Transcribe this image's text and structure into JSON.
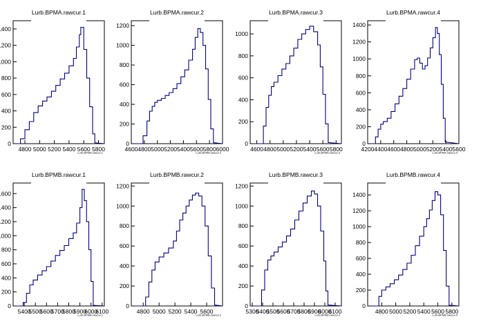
{
  "chart_data": [
    {
      "type": "histogram",
      "title": "Lurb.BPMA.rawcur.1",
      "xlabel": "Lurb.BPMA.rawcur.1",
      "xlim": [
        4640,
        5880
      ],
      "ylim": [
        0,
        1500
      ],
      "xticks": [
        4800,
        5000,
        5200,
        5400,
        5600,
        5800
      ],
      "yticks": [
        0,
        200,
        400,
        600,
        800,
        1000,
        1200,
        1400
      ],
      "bins": {
        "x": [
          4680,
          4740,
          4800,
          4860,
          4920,
          4980,
          5040,
          5100,
          5160,
          5220,
          5280,
          5340,
          5400,
          5460,
          5500,
          5540,
          5560,
          5600,
          5640,
          5680,
          5720,
          5750
        ],
        "y": [
          0,
          60,
          170,
          270,
          380,
          460,
          520,
          570,
          640,
          710,
          790,
          860,
          950,
          1040,
          1180,
          1330,
          1420,
          1150,
          800,
          450,
          120,
          10
        ]
      }
    },
    {
      "type": "histogram",
      "title": "Lurb.BPMA.rawcur.2",
      "xlabel": "Lurb.BPMA.rawcur.2",
      "xlim": [
        4600,
        6000
      ],
      "ylim": [
        0,
        1250
      ],
      "xticks": [
        4600,
        4800,
        5000,
        5200,
        5400,
        5600,
        5800,
        6000
      ],
      "yticks": [
        0,
        200,
        400,
        600,
        800,
        1000,
        1200
      ],
      "bins": {
        "x": [
          4720,
          4780,
          4840,
          4880,
          4920,
          4960,
          5000,
          5060,
          5120,
          5180,
          5240,
          5300,
          5360,
          5420,
          5480,
          5540,
          5580,
          5620,
          5660,
          5700,
          5740,
          5780,
          5820,
          5860
        ],
        "y": [
          0,
          80,
          230,
          330,
          380,
          420,
          440,
          460,
          490,
          520,
          560,
          610,
          680,
          750,
          850,
          960,
          1080,
          1170,
          1130,
          1000,
          760,
          450,
          150,
          10
        ]
      }
    },
    {
      "type": "histogram",
      "title": "Lurb.BPMA.rawcur.3",
      "xlabel": "Lurb.BPMA.rawcur.3",
      "xlim": [
        4500,
        5880
      ],
      "ylim": [
        0,
        1120
      ],
      "xticks": [
        4600,
        4800,
        5000,
        5200,
        5400,
        5600,
        5800
      ],
      "yticks": [
        0,
        200,
        400,
        600,
        800,
        1000
      ],
      "bins": {
        "x": [
          4660,
          4700,
          4740,
          4780,
          4820,
          4860,
          4920,
          4980,
          5040,
          5100,
          5160,
          5220,
          5280,
          5340,
          5400,
          5460,
          5520,
          5560,
          5600,
          5640,
          5680
        ],
        "y": [
          0,
          160,
          330,
          440,
          520,
          560,
          620,
          680,
          730,
          800,
          870,
          950,
          1000,
          1040,
          1070,
          1020,
          900,
          700,
          450,
          180,
          10
        ]
      }
    },
    {
      "type": "histogram",
      "title": "Lurb.BPMA.rawcur.4",
      "xlabel": "Lurb.BPMA.rawcur.4",
      "xlim": [
        4200,
        5600
      ],
      "ylim": [
        0,
        1450
      ],
      "xticks": [
        4200,
        4400,
        4600,
        4800,
        5000,
        5200,
        5400,
        5600
      ],
      "yticks": [
        0,
        200,
        400,
        600,
        800,
        1000,
        1200,
        1400
      ],
      "bins": {
        "x": [
          4280,
          4320,
          4360,
          4400,
          4440,
          4500,
          4560,
          4620,
          4680,
          4740,
          4800,
          4860,
          4920,
          4960,
          5000,
          5040,
          5080,
          5120,
          5160,
          5200,
          5240,
          5270,
          5300,
          5330,
          5360,
          5390
        ],
        "y": [
          0,
          80,
          170,
          230,
          260,
          300,
          380,
          470,
          560,
          650,
          760,
          880,
          990,
          1010,
          950,
          880,
          920,
          1010,
          1130,
          1250,
          1370,
          1300,
          1050,
          700,
          300,
          20
        ]
      }
    },
    {
      "type": "histogram",
      "title": "Lurb.BPMB.rawcur.1",
      "xlabel": "Lurb.BPMB.rawcur.1",
      "xlim": [
        5300,
        6120
      ],
      "ylim": [
        0,
        1750
      ],
      "xticks": [
        5400,
        5500,
        5600,
        5700,
        5800,
        5900,
        6000,
        6100
      ],
      "yticks": [
        0,
        200,
        400,
        600,
        800,
        1000,
        1200,
        1400,
        1600
      ],
      "bins": {
        "x": [
          5360,
          5390,
          5420,
          5450,
          5480,
          5520,
          5560,
          5600,
          5640,
          5680,
          5720,
          5760,
          5800,
          5840,
          5870,
          5900,
          5920,
          5940,
          5960,
          5980,
          6000,
          6020
        ],
        "y": [
          0,
          50,
          180,
          300,
          370,
          440,
          500,
          560,
          640,
          720,
          790,
          860,
          960,
          1040,
          1180,
          1400,
          1660,
          1500,
          1200,
          800,
          350,
          10
        ]
      }
    },
    {
      "type": "histogram",
      "title": "Lurb.BPMB.rawcur.2",
      "xlabel": "Lurb.BPMB.rawcur.2",
      "xlim": [
        4650,
        5800
      ],
      "ylim": [
        0,
        1230
      ],
      "xticks": [
        4800,
        5000,
        5200,
        5400,
        5600
      ],
      "yticks": [
        0,
        200,
        400,
        600,
        800,
        1000,
        1200
      ],
      "bins": {
        "x": [
          4790,
          4830,
          4870,
          4910,
          4950,
          5000,
          5060,
          5120,
          5180,
          5220,
          5260,
          5300,
          5340,
          5380,
          5420,
          5460,
          5500,
          5540,
          5580,
          5620,
          5660,
          5700
        ],
        "y": [
          0,
          90,
          240,
          360,
          440,
          490,
          530,
          580,
          650,
          750,
          860,
          930,
          1000,
          1060,
          1110,
          1130,
          1100,
          1000,
          800,
          500,
          180,
          10
        ]
      }
    },
    {
      "type": "histogram",
      "title": "Lurb.BPMB.rawcur.3",
      "xlabel": "Lurb.BPMB.rawcur.3",
      "xlim": [
        5280,
        6160
      ],
      "ylim": [
        0,
        1230
      ],
      "xticks": [
        5300,
        5400,
        5500,
        5600,
        5700,
        5800,
        5900,
        6000,
        6100
      ],
      "yticks": [
        0,
        200,
        400,
        600,
        800,
        1000,
        1200
      ],
      "bins": {
        "x": [
          5360,
          5390,
          5420,
          5450,
          5480,
          5510,
          5550,
          5590,
          5630,
          5670,
          5710,
          5750,
          5790,
          5830,
          5870,
          5900,
          5930,
          5960,
          5990,
          6010,
          6030
        ],
        "y": [
          0,
          160,
          360,
          460,
          500,
          540,
          590,
          640,
          700,
          770,
          860,
          950,
          1030,
          1100,
          1150,
          1120,
          1000,
          750,
          450,
          150,
          10
        ]
      }
    },
    {
      "type": "histogram",
      "title": "Lurb.BPMB.rawcur.4",
      "xlabel": "Lurb.BPMB.rawcur.4",
      "xlim": [
        4600,
        5900
      ],
      "ylim": [
        0,
        1550
      ],
      "xticks": [
        4800,
        5000,
        5200,
        5400,
        5600,
        5800
      ],
      "yticks": [
        0,
        200,
        400,
        600,
        800,
        1000,
        1200,
        1400
      ],
      "bins": {
        "x": [
          4720,
          4760,
          4800,
          4860,
          4920,
          4980,
          5040,
          5100,
          5160,
          5220,
          5280,
          5340,
          5400,
          5440,
          5480,
          5520,
          5560,
          5600,
          5640,
          5680,
          5720,
          5760
        ],
        "y": [
          0,
          120,
          200,
          240,
          280,
          330,
          390,
          460,
          540,
          640,
          760,
          880,
          1000,
          1100,
          1210,
          1330,
          1440,
          1400,
          1150,
          700,
          250,
          10
        ]
      }
    }
  ]
}
